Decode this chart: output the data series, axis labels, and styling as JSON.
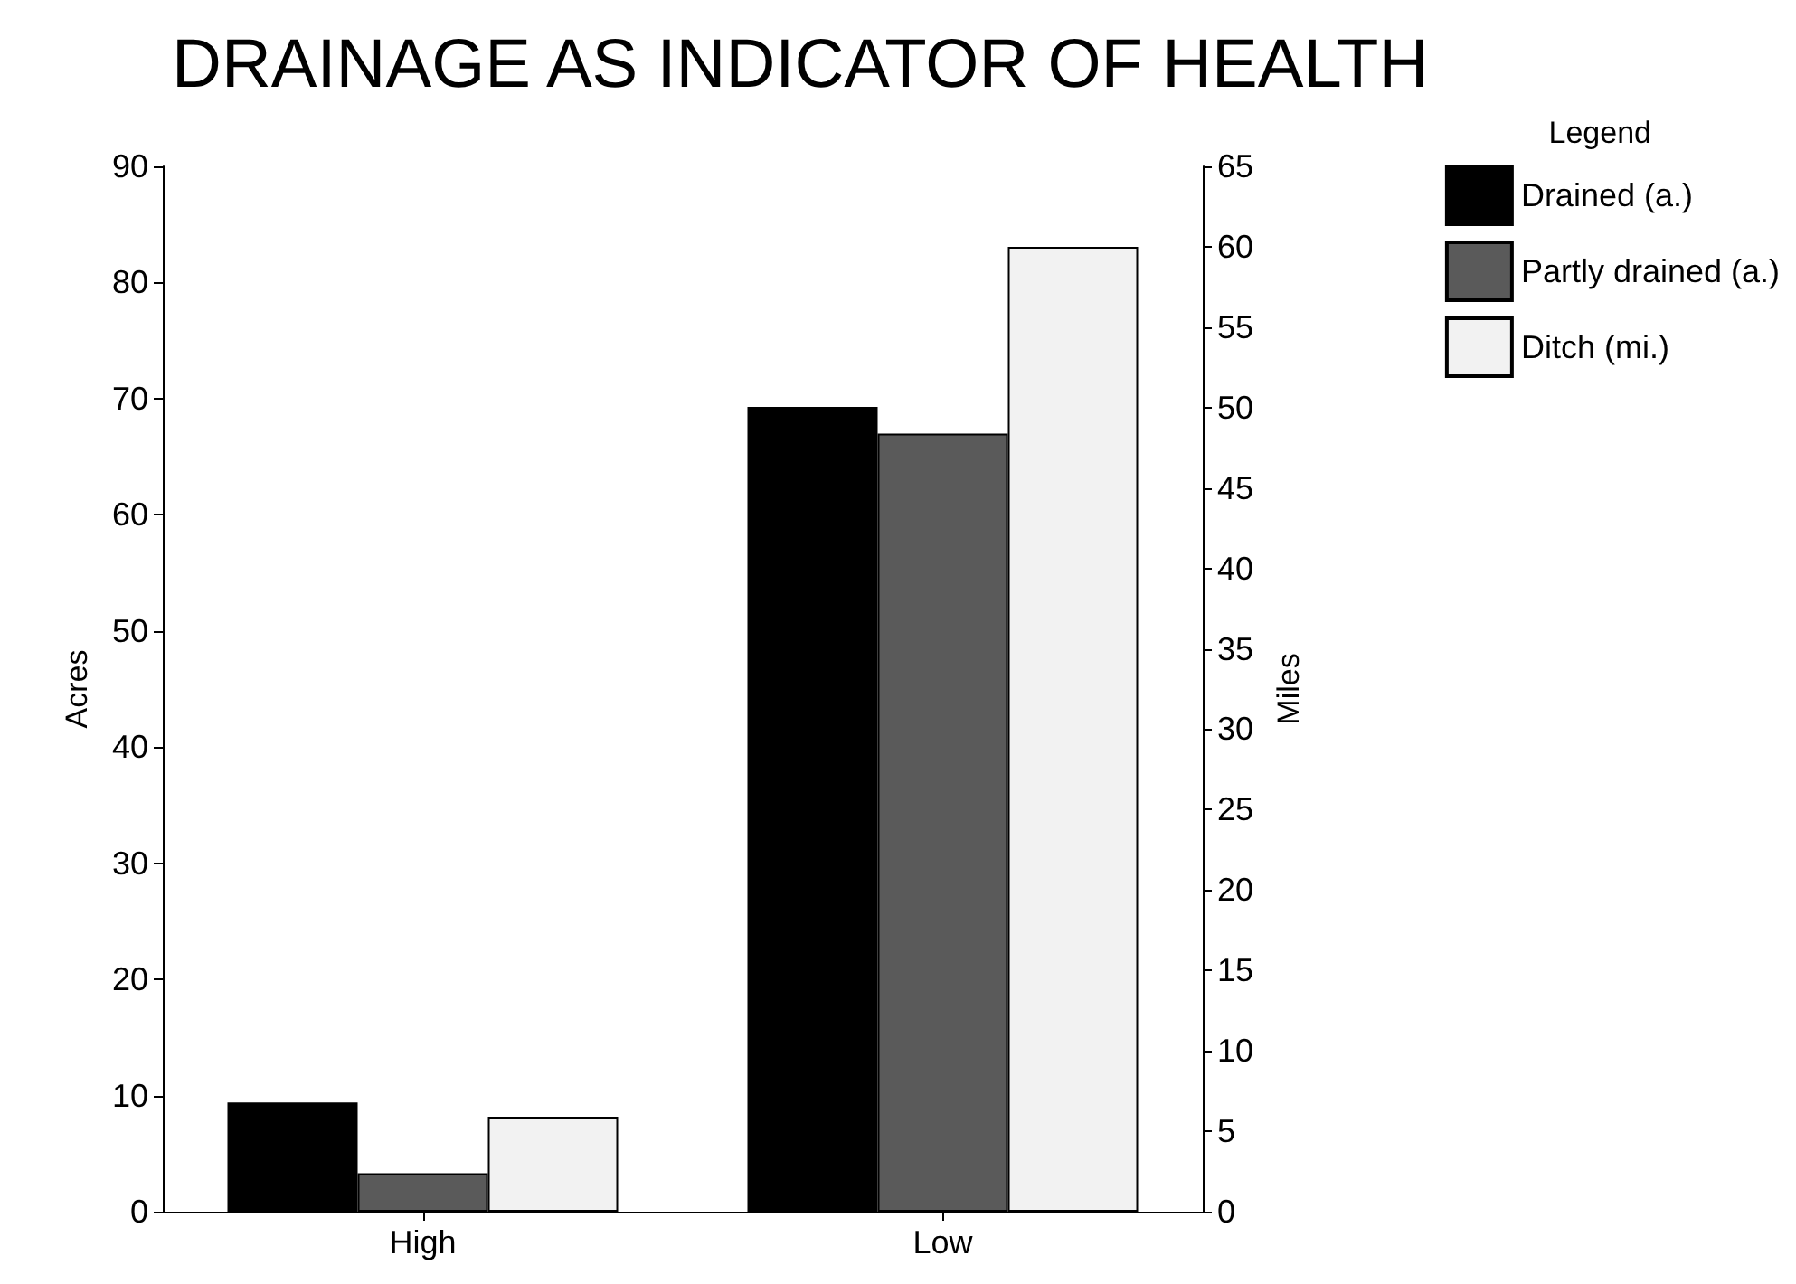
{
  "chart_data": {
    "type": "bar",
    "title": "DRAINAGE AS INDICATOR OF HEALTH",
    "categories": [
      "High",
      "Low"
    ],
    "series": [
      {
        "name": "Drained (a.)",
        "color": "#000000",
        "values": [
          9.4,
          69.3
        ]
      },
      {
        "name": "Partly drained (a.)",
        "color": "#5a5a5a",
        "values": [
          3.3,
          67
        ]
      },
      {
        "name": "Ditch (mi.)",
        "color": "#f2f2f2",
        "values": [
          5.9,
          60
        ],
        "axis": "y2"
      }
    ],
    "ylabel": "Acres",
    "y2label": "Miles",
    "legend_title": "Legend",
    "ylim": [
      0,
      90
    ],
    "yticks": [
      0,
      10,
      20,
      30,
      40,
      50,
      60,
      70,
      80,
      90
    ],
    "y2lim": [
      0,
      65
    ],
    "y2ticks": [
      0,
      5,
      10,
      15,
      20,
      25,
      30,
      35,
      40,
      45,
      50,
      55,
      60,
      65
    ],
    "grid": false,
    "legend": "top right"
  }
}
